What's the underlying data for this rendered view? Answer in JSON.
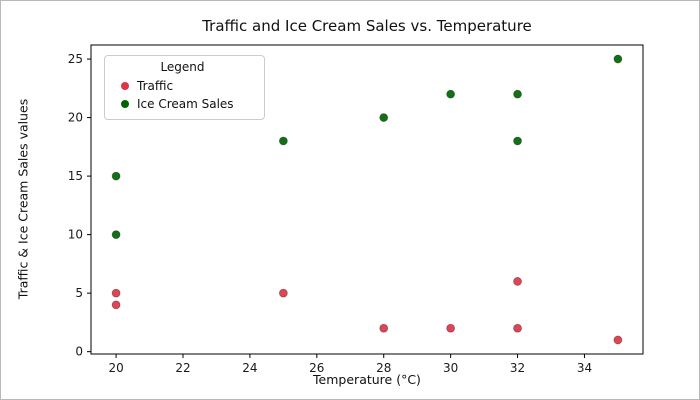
{
  "figure": {
    "title": "Traffic and Ice Cream Sales vs. Temperature",
    "xlabel": "Temperature (°C)",
    "ylabel": "Traffic & Ice Cream Sales values",
    "legend_title": "Legend"
  },
  "chart_data": {
    "type": "scatter",
    "title": "Traffic and Ice Cream Sales vs. Temperature",
    "xlabel": "Temperature (°C)",
    "ylabel": "Traffic & Ice Cream Sales values",
    "legend_title": "Legend",
    "legend_position": "upper left",
    "grid": false,
    "xlim": [
      19.25,
      35.75
    ],
    "ylim": [
      -0.2,
      26.2
    ],
    "xticks": [
      20,
      22,
      24,
      26,
      28,
      30,
      32,
      34
    ],
    "yticks": [
      0,
      5,
      10,
      15,
      20,
      25
    ],
    "x": [
      20,
      20,
      25,
      28,
      30,
      32,
      32,
      35
    ],
    "series": [
      {
        "name": "Traffic",
        "color": "#dc3545",
        "marker": "circle",
        "y": [
          5,
          4,
          5,
          2,
          2,
          6,
          2,
          1
        ]
      },
      {
        "name": "Ice Cream Sales",
        "color": "#006400",
        "marker": "circle",
        "y": [
          15,
          10,
          18,
          20,
          22,
          22,
          18,
          25
        ]
      }
    ]
  }
}
